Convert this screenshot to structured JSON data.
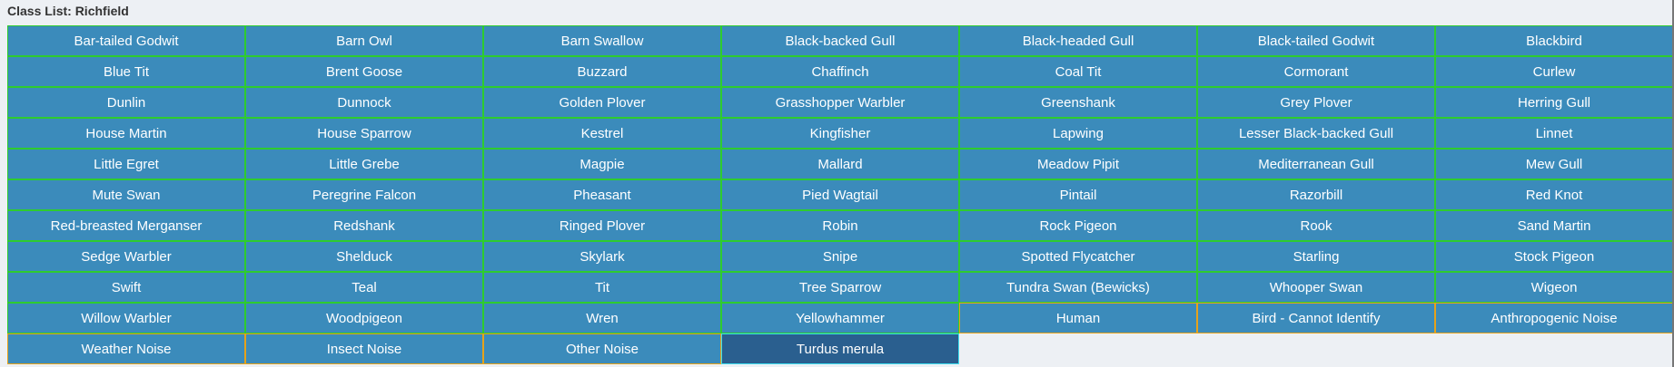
{
  "title": "Class List: Richfield",
  "colors": {
    "cell": "#3b8bbb",
    "selected": "#2a5f8f",
    "bird_border": "#2ecc2e",
    "noise_border": "#e6a21a",
    "selected_border": "#3fe0f0"
  },
  "classes": [
    {
      "label": "Bar-tailed Godwit",
      "kind": "bird"
    },
    {
      "label": "Barn Owl",
      "kind": "bird"
    },
    {
      "label": "Barn Swallow",
      "kind": "bird"
    },
    {
      "label": "Black-backed Gull",
      "kind": "bird"
    },
    {
      "label": "Black-headed Gull",
      "kind": "bird"
    },
    {
      "label": "Black-tailed Godwit",
      "kind": "bird"
    },
    {
      "label": "Blackbird",
      "kind": "bird"
    },
    {
      "label": "Blue Tit",
      "kind": "bird"
    },
    {
      "label": "Brent Goose",
      "kind": "bird"
    },
    {
      "label": "Buzzard",
      "kind": "bird"
    },
    {
      "label": "Chaffinch",
      "kind": "bird"
    },
    {
      "label": "Coal Tit",
      "kind": "bird"
    },
    {
      "label": "Cormorant",
      "kind": "bird"
    },
    {
      "label": "Curlew",
      "kind": "bird"
    },
    {
      "label": "Dunlin",
      "kind": "bird"
    },
    {
      "label": "Dunnock",
      "kind": "bird"
    },
    {
      "label": "Golden Plover",
      "kind": "bird"
    },
    {
      "label": "Grasshopper Warbler",
      "kind": "bird"
    },
    {
      "label": "Greenshank",
      "kind": "bird"
    },
    {
      "label": "Grey Plover",
      "kind": "bird"
    },
    {
      "label": "Herring Gull",
      "kind": "bird"
    },
    {
      "label": "House Martin",
      "kind": "bird"
    },
    {
      "label": "House Sparrow",
      "kind": "bird"
    },
    {
      "label": "Kestrel",
      "kind": "bird"
    },
    {
      "label": "Kingfisher",
      "kind": "bird"
    },
    {
      "label": "Lapwing",
      "kind": "bird"
    },
    {
      "label": "Lesser Black-backed Gull",
      "kind": "bird"
    },
    {
      "label": "Linnet",
      "kind": "bird"
    },
    {
      "label": "Little Egret",
      "kind": "bird"
    },
    {
      "label": "Little Grebe",
      "kind": "bird"
    },
    {
      "label": "Magpie",
      "kind": "bird"
    },
    {
      "label": "Mallard",
      "kind": "bird"
    },
    {
      "label": "Meadow Pipit",
      "kind": "bird"
    },
    {
      "label": "Mediterranean Gull",
      "kind": "bird"
    },
    {
      "label": "Mew Gull",
      "kind": "bird"
    },
    {
      "label": "Mute Swan",
      "kind": "bird"
    },
    {
      "label": "Peregrine Falcon",
      "kind": "bird"
    },
    {
      "label": "Pheasant",
      "kind": "bird"
    },
    {
      "label": "Pied Wagtail",
      "kind": "bird"
    },
    {
      "label": "Pintail",
      "kind": "bird"
    },
    {
      "label": "Razorbill",
      "kind": "bird"
    },
    {
      "label": "Red Knot",
      "kind": "bird"
    },
    {
      "label": "Red-breasted Merganser",
      "kind": "bird"
    },
    {
      "label": "Redshank",
      "kind": "bird"
    },
    {
      "label": "Ringed Plover",
      "kind": "bird"
    },
    {
      "label": "Robin",
      "kind": "bird"
    },
    {
      "label": "Rock Pigeon",
      "kind": "bird"
    },
    {
      "label": "Rook",
      "kind": "bird"
    },
    {
      "label": "Sand Martin",
      "kind": "bird"
    },
    {
      "label": "Sedge Warbler",
      "kind": "bird"
    },
    {
      "label": "Shelduck",
      "kind": "bird"
    },
    {
      "label": "Skylark",
      "kind": "bird"
    },
    {
      "label": "Snipe",
      "kind": "bird"
    },
    {
      "label": "Spotted Flycatcher",
      "kind": "bird"
    },
    {
      "label": "Starling",
      "kind": "bird"
    },
    {
      "label": "Stock Pigeon",
      "kind": "bird"
    },
    {
      "label": "Swift",
      "kind": "bird"
    },
    {
      "label": "Teal",
      "kind": "bird"
    },
    {
      "label": "Tit",
      "kind": "bird"
    },
    {
      "label": "Tree Sparrow",
      "kind": "bird"
    },
    {
      "label": "Tundra Swan (Bewicks)",
      "kind": "bird"
    },
    {
      "label": "Whooper Swan",
      "kind": "bird"
    },
    {
      "label": "Wigeon",
      "kind": "bird"
    },
    {
      "label": "Willow Warbler",
      "kind": "bird"
    },
    {
      "label": "Woodpigeon",
      "kind": "bird"
    },
    {
      "label": "Wren",
      "kind": "bird"
    },
    {
      "label": "Yellowhammer",
      "kind": "bird"
    },
    {
      "label": "Human",
      "kind": "noise"
    },
    {
      "label": "Bird - Cannot Identify",
      "kind": "noise"
    },
    {
      "label": "Anthropogenic Noise",
      "kind": "noise"
    },
    {
      "label": "Weather Noise",
      "kind": "noise"
    },
    {
      "label": "Insect Noise",
      "kind": "noise"
    },
    {
      "label": "Other Noise",
      "kind": "noise"
    },
    {
      "label": "Turdus merula",
      "kind": "selected"
    }
  ]
}
